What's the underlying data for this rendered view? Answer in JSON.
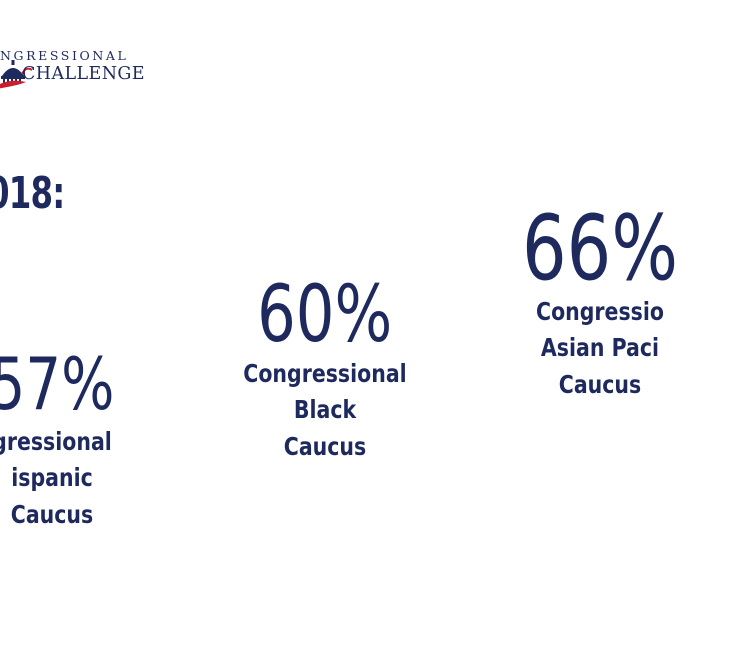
{
  "logo": {
    "top_text": "NGRESSIONAL",
    "bottom_text": "CHALLENGE",
    "colors": {
      "navy": "#1e2a5e",
      "red": "#c8202f"
    },
    "icon": "capitol-dome-icon"
  },
  "heading": {
    "year_text": "018:"
  },
  "stats": {
    "hispanic": {
      "percent": "57%",
      "label_line1": "gressional",
      "label_line2": "ispanic",
      "label_line3": "Caucus"
    },
    "black": {
      "percent": "60%",
      "label_line1": "Congressional",
      "label_line2": "Black",
      "label_line3": "Caucus"
    },
    "apac": {
      "percent": "66%",
      "label_line1": "Congressio",
      "label_line2": "Asian Paci",
      "label_line3": "Caucus"
    }
  },
  "colors": {
    "text": "#1e2a5e",
    "background": "#ffffff"
  }
}
